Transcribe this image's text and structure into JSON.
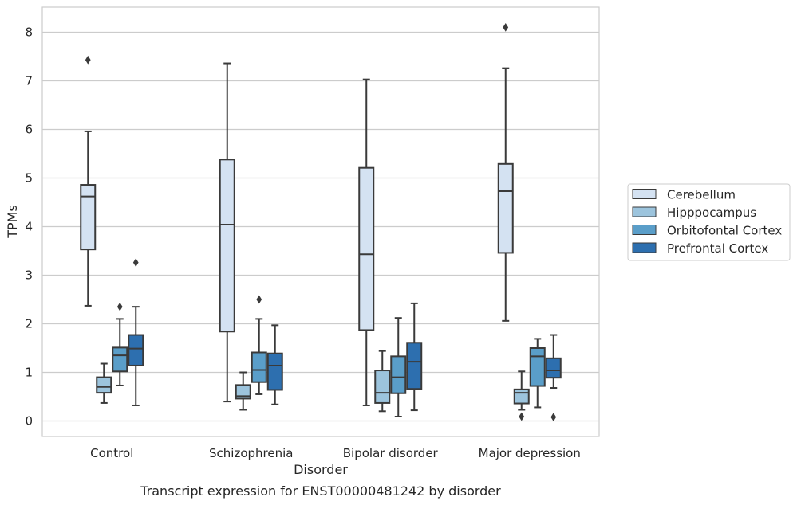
{
  "chart_data": {
    "type": "box",
    "xlabel": "Disorder",
    "ylabel": "TPMs",
    "caption": "Transcript expression for ENST00000481242 by disorder",
    "ylim": [
      -0.3,
      8.5
    ],
    "yticks": [
      0,
      1,
      2,
      3,
      4,
      5,
      6,
      7,
      8
    ],
    "grid": "horizontal",
    "legend_position": "right",
    "categories": [
      "Control",
      "Schizophrenia",
      "Bipolar disorder",
      "Major depression"
    ],
    "series": [
      {
        "name": "Cerebellum",
        "color": "#d4e2f2",
        "boxes": [
          {
            "whislo": 2.37,
            "q1": 3.53,
            "med": 4.62,
            "q3": 4.86,
            "whishi": 5.96,
            "fliers": [
              7.43
            ]
          },
          {
            "whislo": 0.4,
            "q1": 1.84,
            "med": 4.04,
            "q3": 5.38,
            "whishi": 7.36,
            "fliers": []
          },
          {
            "whislo": 0.32,
            "q1": 1.87,
            "med": 3.43,
            "q3": 5.21,
            "whishi": 7.03,
            "fliers": []
          },
          {
            "whislo": 2.06,
            "q1": 3.46,
            "med": 4.73,
            "q3": 5.29,
            "whishi": 7.26,
            "fliers": [
              8.1
            ]
          }
        ]
      },
      {
        "name": "Hipppocampus",
        "color": "#9cc4dd",
        "boxes": [
          {
            "whislo": 0.37,
            "q1": 0.58,
            "med": 0.7,
            "q3": 0.9,
            "whishi": 1.18,
            "fliers": []
          },
          {
            "whislo": 0.23,
            "q1": 0.46,
            "med": 0.51,
            "q3": 0.74,
            "whishi": 1.0,
            "fliers": []
          },
          {
            "whislo": 0.2,
            "q1": 0.37,
            "med": 0.58,
            "q3": 1.04,
            "whishi": 1.44,
            "fliers": []
          },
          {
            "whislo": 0.23,
            "q1": 0.36,
            "med": 0.58,
            "q3": 0.65,
            "whishi": 1.02,
            "fliers": [
              0.09
            ]
          }
        ]
      },
      {
        "name": "Orbitofontal Cortex",
        "color": "#5a9ec9",
        "boxes": [
          {
            "whislo": 0.73,
            "q1": 1.02,
            "med": 1.35,
            "q3": 1.51,
            "whishi": 2.1,
            "fliers": [
              2.35
            ]
          },
          {
            "whislo": 0.55,
            "q1": 0.8,
            "med": 1.05,
            "q3": 1.41,
            "whishi": 2.1,
            "fliers": [
              2.5
            ]
          },
          {
            "whislo": 0.09,
            "q1": 0.57,
            "med": 0.9,
            "q3": 1.33,
            "whishi": 2.12,
            "fliers": []
          },
          {
            "whislo": 0.28,
            "q1": 0.72,
            "med": 1.33,
            "q3": 1.5,
            "whishi": 1.69,
            "fliers": []
          }
        ]
      },
      {
        "name": "Prefrontal Cortex",
        "color": "#2d6faf",
        "boxes": [
          {
            "whislo": 0.32,
            "q1": 1.14,
            "med": 1.49,
            "q3": 1.77,
            "whishi": 2.35,
            "fliers": [
              3.26
            ]
          },
          {
            "whislo": 0.34,
            "q1": 0.64,
            "med": 1.14,
            "q3": 1.39,
            "whishi": 1.97,
            "fliers": []
          },
          {
            "whislo": 0.22,
            "q1": 0.66,
            "med": 1.22,
            "q3": 1.61,
            "whishi": 2.42,
            "fliers": []
          },
          {
            "whislo": 0.68,
            "q1": 0.89,
            "med": 1.04,
            "q3": 1.29,
            "whishi": 1.77,
            "fliers": [
              0.08
            ]
          }
        ]
      }
    ]
  }
}
